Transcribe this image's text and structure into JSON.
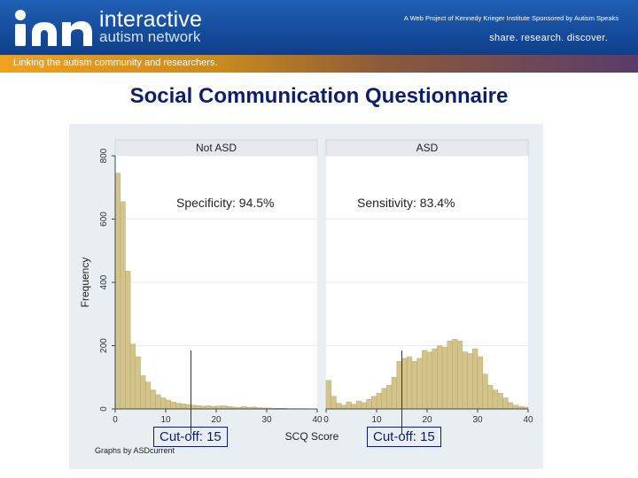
{
  "header": {
    "logo_text": "ian",
    "brand_line1": "interactive",
    "brand_line2": "autism network",
    "project_note": "A Web Project of Kennedy Krieger Institute  Sponsored by Autism Speaks",
    "motto": "share. research. discover.",
    "tagline": "Linking the autism community and researchers."
  },
  "page_title": "Social Communication Questionnaire",
  "annotations": {
    "specificity": "Specificity: 94.5%",
    "sensitivity": "Sensitivity: 83.4%",
    "cutoff_left": "Cut-off: 15",
    "cutoff_right": "Cut-off: 15"
  },
  "colors": {
    "bar_fill": "#d2c48a",
    "bar_stroke": "#b7a96b",
    "plot_bg": "#ffffff",
    "panel_header": "#e5e9ee",
    "figure_bg": "#e9eef2",
    "cutoff_line": "#333333"
  },
  "chart_data": {
    "type": "bar",
    "title": "",
    "xlabel": "SCQ Score",
    "ylabel": "Frequency",
    "xlim": [
      0,
      40
    ],
    "ylim": [
      0,
      800
    ],
    "xticks": [
      0,
      10,
      20,
      30,
      40
    ],
    "yticks": [
      0,
      200,
      400,
      600,
      800
    ],
    "grid": true,
    "note": "Graphs by ASDcurrent",
    "cutoff": 15,
    "bin_width": 1,
    "panels": [
      {
        "title": "Not ASD",
        "bins_start": 0,
        "values": [
          745,
          655,
          435,
          205,
          165,
          105,
          85,
          60,
          45,
          35,
          28,
          22,
          18,
          16,
          14,
          12,
          10,
          9,
          10,
          8,
          9,
          10,
          8,
          6,
          5,
          8,
          5,
          6,
          4,
          3,
          3,
          2,
          2,
          2,
          1,
          1,
          1,
          1,
          0,
          0
        ]
      },
      {
        "title": "ASD",
        "bins_start": 0,
        "values": [
          90,
          40,
          18,
          12,
          22,
          15,
          25,
          20,
          30,
          40,
          50,
          65,
          75,
          100,
          150,
          160,
          165,
          150,
          160,
          185,
          180,
          190,
          200,
          195,
          215,
          220,
          215,
          180,
          175,
          190,
          165,
          110,
          75,
          60,
          50,
          35,
          20,
          12,
          8,
          6
        ]
      }
    ]
  }
}
